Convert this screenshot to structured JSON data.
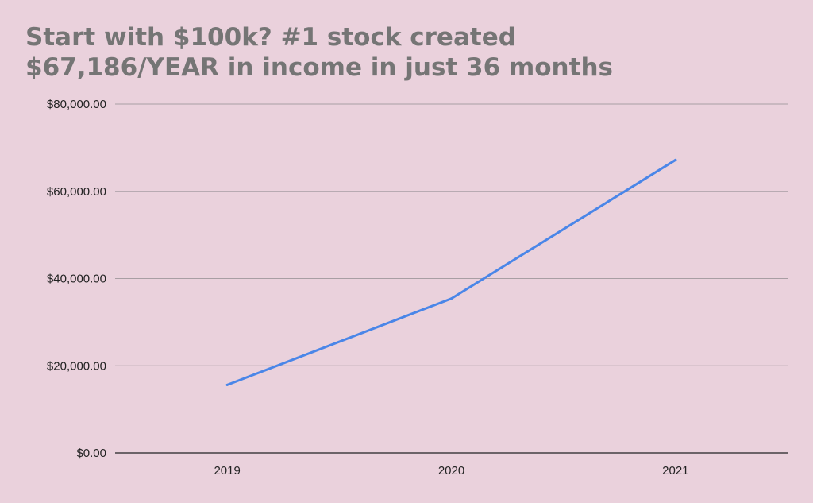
{
  "chart_data": {
    "type": "line",
    "title_lines": [
      "Start with $100k? #1 stock created",
      "$67,186/YEAR in income in just 36 months"
    ],
    "xlabel": "",
    "ylabel": "",
    "categories": [
      "2019",
      "2020",
      "2021"
    ],
    "series": [
      {
        "values": [
          15600,
          35400,
          67186
        ]
      }
    ],
    "ylim": [
      0,
      80000
    ],
    "y_ticks": [
      0,
      20000,
      40000,
      60000,
      80000
    ],
    "y_tick_labels": [
      "$0.00",
      "$20,000.00",
      "$40,000.00",
      "$60,000.00",
      "$80,000.00"
    ],
    "grid": true,
    "legend": "none",
    "colors": {
      "background": "#ead1dc",
      "line": "#4a86e8",
      "grid": "#a89ea3",
      "axis": "#222222",
      "title": "#757575"
    }
  }
}
